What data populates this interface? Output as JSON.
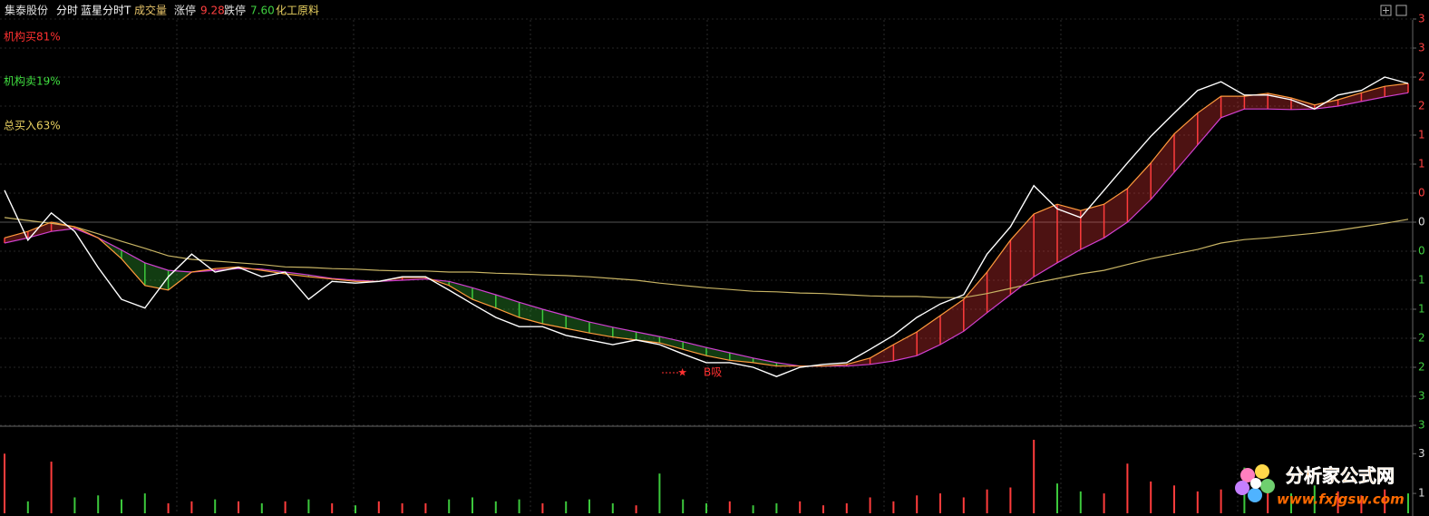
{
  "header": {
    "stock": "集泰股份",
    "mode": "分时",
    "formula": "蓝星分时T",
    "volume_label": "成交量",
    "limit_up_label": "涨停",
    "limit_up": "9.28",
    "limit_down_label": "跌停",
    "limit_down": "7.60",
    "sector": "化工原料"
  },
  "indicators": [
    {
      "text": "机构买81%",
      "color": "#ff3030"
    },
    {
      "text": "机构卖19%",
      "color": "#40e040"
    },
    {
      "text": "总买入63%",
      "color": "#e8d060"
    }
  ],
  "watermark": {
    "title": "分析家公式网",
    "url": "www.fxjgsw.com"
  },
  "chart_data": {
    "type": "line",
    "annotation": "B吸",
    "ylim": [
      -3.5,
      3.5
    ],
    "yticks": [
      {
        "value": 3.5,
        "label": "3"
      },
      3,
      {
        "value": 2.5,
        "label": "2"
      },
      2,
      {
        "value": 1.5,
        "label": "1"
      },
      1,
      {
        "value": 0.5,
        "label": "0"
      },
      0,
      {
        "value": -0.5,
        "label": "0"
      },
      {
        "value": -1,
        "label": "1"
      },
      {
        "value": -1.5,
        "label": "1"
      },
      {
        "value": -2,
        "label": "2"
      },
      {
        "value": -2.5,
        "label": "2"
      },
      {
        "value": -3,
        "label": "3"
      },
      {
        "value": -3.5,
        "label": "3"
      }
    ],
    "grid": true,
    "series": [
      {
        "color": "#ffffff",
        "values": [
          0.55,
          -0.31,
          0.16,
          -0.16,
          -0.78,
          -1.33,
          -1.48,
          -0.94,
          -0.55,
          -0.86,
          -0.78,
          -0.94,
          -0.86,
          -1.33,
          -1.02,
          -1.05,
          -1.02,
          -0.94,
          -0.94,
          -1.17,
          -1.41,
          -1.64,
          -1.8,
          -1.8,
          -1.95,
          -2.03,
          -2.11,
          -2.03,
          -2.11,
          -2.27,
          -2.42,
          -2.42,
          -2.5,
          -2.66,
          -2.5,
          -2.45,
          -2.42,
          -2.19,
          -1.95,
          -1.64,
          -1.41,
          -1.25,
          -0.55,
          -0.08,
          0.63,
          0.23,
          0.08,
          0.55,
          1.02,
          1.48,
          1.88,
          2.27,
          2.42,
          2.19,
          2.19,
          2.11,
          1.95,
          2.19,
          2.27,
          2.5,
          2.39
        ]
      },
      {
        "color": "#c8b464",
        "values": [
          0.08,
          0.03,
          -0.02,
          -0.08,
          -0.2,
          -0.33,
          -0.45,
          -0.58,
          -0.64,
          -0.67,
          -0.7,
          -0.73,
          -0.77,
          -0.78,
          -0.8,
          -0.81,
          -0.83,
          -0.84,
          -0.84,
          -0.86,
          -0.86,
          -0.88,
          -0.89,
          -0.91,
          -0.92,
          -0.94,
          -0.97,
          -1.0,
          -1.05,
          -1.09,
          -1.13,
          -1.16,
          -1.19,
          -1.2,
          -1.22,
          -1.23,
          -1.25,
          -1.27,
          -1.28,
          -1.28,
          -1.3,
          -1.3,
          -1.23,
          -1.14,
          -1.05,
          -0.97,
          -0.89,
          -0.83,
          -0.73,
          -0.63,
          -0.55,
          -0.47,
          -0.36,
          -0.3,
          -0.27,
          -0.23,
          -0.19,
          -0.14,
          -0.08,
          -0.02,
          0.05
        ]
      },
      {
        "color": "#ff9a3c",
        "values": [
          -0.27,
          -0.16,
          0,
          -0.08,
          -0.27,
          -0.63,
          -1.09,
          -1.17,
          -0.86,
          -0.8,
          -0.77,
          -0.83,
          -0.89,
          -0.94,
          -0.98,
          -1.02,
          -1.02,
          -0.95,
          -0.95,
          -1.09,
          -1.33,
          -1.48,
          -1.64,
          -1.75,
          -1.83,
          -1.91,
          -1.98,
          -2.03,
          -2.08,
          -2.19,
          -2.3,
          -2.38,
          -2.42,
          -2.48,
          -2.48,
          -2.48,
          -2.45,
          -2.34,
          -2.11,
          -1.89,
          -1.61,
          -1.33,
          -0.86,
          -0.31,
          0.14,
          0.31,
          0.2,
          0.31,
          0.58,
          1.02,
          1.52,
          1.88,
          2.17,
          2.17,
          2.22,
          2.14,
          2.02,
          2.11,
          2.23,
          2.34,
          2.39
        ]
      },
      {
        "color": "#d040d0",
        "values": [
          -0.36,
          -0.27,
          -0.16,
          -0.11,
          -0.27,
          -0.48,
          -0.7,
          -0.83,
          -0.86,
          -0.83,
          -0.8,
          -0.81,
          -0.86,
          -0.91,
          -0.97,
          -1.0,
          -1.02,
          -1.0,
          -0.98,
          -1.02,
          -1.13,
          -1.25,
          -1.38,
          -1.5,
          -1.61,
          -1.72,
          -1.81,
          -1.89,
          -1.97,
          -2.06,
          -2.16,
          -2.25,
          -2.34,
          -2.42,
          -2.48,
          -2.48,
          -2.48,
          -2.45,
          -2.39,
          -2.3,
          -2.11,
          -1.88,
          -1.56,
          -1.25,
          -0.94,
          -0.7,
          -0.47,
          -0.27,
          0,
          0.39,
          0.86,
          1.33,
          1.8,
          1.95,
          1.95,
          1.94,
          1.95,
          2.0,
          2.08,
          2.16,
          2.23
        ]
      }
    ],
    "up_color": "#ff3c3c",
    "down_color": "#3cc83c",
    "volume": {
      "ylim": [
        0,
        4.2
      ],
      "yticks": [
        3,
        1
      ],
      "values": [
        3.0,
        0.6,
        2.6,
        0.8,
        0.9,
        0.7,
        1.0,
        0.5,
        0.6,
        0.7,
        0.6,
        0.5,
        0.6,
        0.7,
        0.5,
        0.4,
        0.6,
        0.5,
        0.5,
        0.7,
        0.8,
        0.6,
        0.7,
        0.5,
        0.6,
        0.7,
        0.5,
        0.4,
        2.0,
        0.7,
        0.5,
        0.6,
        0.4,
        0.5,
        0.6,
        0.4,
        0.5,
        0.8,
        0.6,
        0.9,
        1.0,
        0.8,
        1.2,
        1.3,
        3.7,
        1.5,
        1.1,
        1.0,
        2.5,
        1.6,
        1.4,
        1.1,
        1.2,
        2.3,
        1.3,
        1.0,
        1.4,
        1.1,
        0.9,
        1.2,
        1.0
      ]
    }
  }
}
